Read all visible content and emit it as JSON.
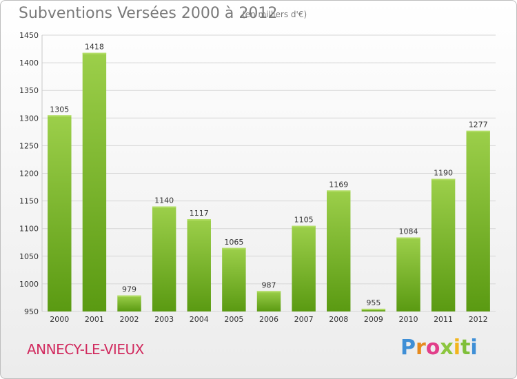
{
  "header": {
    "title": "Subventions Versées 2000 à 2012",
    "subtitle": "(en milliers d'€)"
  },
  "footer": {
    "location": "ANNECY-LE-VIEUX",
    "logo_text": "Proxiti",
    "logo_letters": [
      "P",
      "r",
      "o",
      "x",
      "i",
      "t",
      "i"
    ]
  },
  "colors": {
    "bar_top": "#9ccf4a",
    "bar_bottom": "#5a9a12",
    "grid": "#d6d6d6",
    "axis_text": "#333333",
    "title": "#7a7a7a",
    "location": "#d12a5e"
  },
  "chart_data": {
    "type": "bar",
    "title": "Subventions Versées 2000 à 2012",
    "subtitle": "(en milliers d'€)",
    "xlabel": "",
    "ylabel": "",
    "categories": [
      "2000",
      "2001",
      "2002",
      "2003",
      "2004",
      "2005",
      "2006",
      "2007",
      "2008",
      "2009",
      "2010",
      "2011",
      "2012"
    ],
    "values": [
      1305,
      1418,
      979,
      1140,
      1117,
      1065,
      987,
      1105,
      1169,
      955,
      1084,
      1190,
      1277
    ],
    "ylim": [
      950,
      1450
    ],
    "yticks": [
      950,
      1000,
      1050,
      1100,
      1150,
      1200,
      1250,
      1300,
      1350,
      1400,
      1450
    ],
    "grid": true,
    "legend": "none"
  }
}
